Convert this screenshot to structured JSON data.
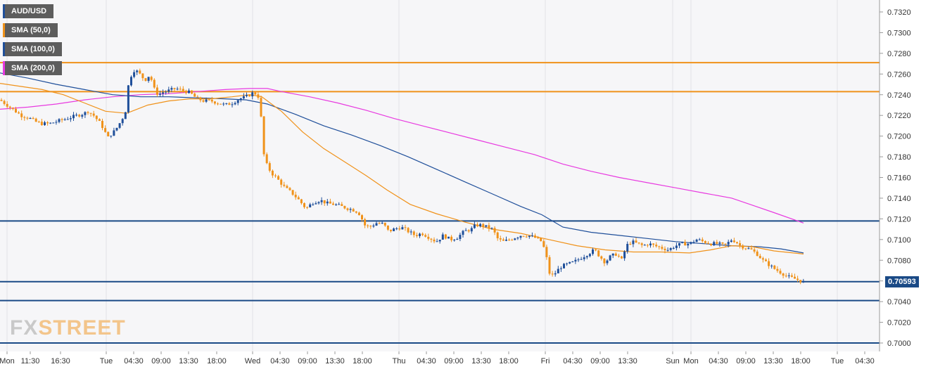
{
  "legend": {
    "symbol": "AUD/USD",
    "sma50": "SMA (50,0)",
    "sma100": "SMA (100,0)",
    "sma200": "SMA (200,0)"
  },
  "logo": {
    "fx": "FX",
    "street": "STREET"
  },
  "current_price": "0.70593",
  "colors": {
    "candle_up": "#1f4f9a",
    "candle_down": "#f0921a",
    "sma50": "#f0921a",
    "sma100": "#1f4f9a",
    "sma200": "#e83ae0",
    "resistance": "#f0921a",
    "support": "#1a4a86",
    "price_tag": "#1a4a86"
  },
  "chart_data": {
    "type": "candlestick",
    "symbol": "AUD/USD",
    "timeframe": "30m",
    "ylim": [
      0.6995,
      0.733
    ],
    "y_ticks": [
      "0.7320",
      "0.7300",
      "0.7280",
      "0.7260",
      "0.7240",
      "0.7220",
      "0.7200",
      "0.7180",
      "0.7160",
      "0.7140",
      "0.7120",
      "0.7100",
      "0.7080",
      "0.7060",
      "0.7040",
      "0.7020",
      "0.7000"
    ],
    "x_ticks": [
      "Mon",
      "11:30",
      "16:30",
      "Tue",
      "04:30",
      "09:00",
      "13:30",
      "18:00",
      "Wed",
      "04:30",
      "09:00",
      "13:30",
      "18:00",
      "Thu",
      "04:30",
      "09:00",
      "13:30",
      "18:00",
      "Fri",
      "04:30",
      "09:00",
      "13:30",
      "Sun",
      "Mon",
      "04:30",
      "09:00",
      "13:30",
      "18:00",
      "Tue",
      "04:30"
    ],
    "horizontal_levels": [
      {
        "value": 0.7271,
        "kind": "resistance"
      },
      {
        "value": 0.7243,
        "kind": "resistance"
      },
      {
        "value": 0.7118,
        "kind": "support"
      },
      {
        "value": 0.70593,
        "kind": "support"
      },
      {
        "value": 0.7041,
        "kind": "support"
      },
      {
        "value": 0.7,
        "kind": "support"
      }
    ],
    "close_path": [
      [
        0,
        0.7235
      ],
      [
        10,
        0.723
      ],
      [
        20,
        0.7225
      ],
      [
        30,
        0.722
      ],
      [
        40,
        0.7218
      ],
      [
        50,
        0.7214
      ],
      [
        60,
        0.7212
      ],
      [
        70,
        0.7212
      ],
      [
        80,
        0.7214
      ],
      [
        90,
        0.7216
      ],
      [
        100,
        0.7218
      ],
      [
        110,
        0.722
      ],
      [
        120,
        0.7222
      ],
      [
        125,
        0.7224
      ],
      [
        133,
        0.722
      ],
      [
        138,
        0.7216
      ],
      [
        143,
        0.7212
      ],
      [
        148,
        0.7206
      ],
      [
        153,
        0.7198
      ],
      [
        158,
        0.7202
      ],
      [
        163,
        0.7205
      ],
      [
        168,
        0.721
      ],
      [
        173,
        0.7216
      ],
      [
        178,
        0.7222
      ],
      [
        181,
        0.7245
      ],
      [
        186,
        0.7258
      ],
      [
        191,
        0.7264
      ],
      [
        196,
        0.7262
      ],
      [
        201,
        0.7258
      ],
      [
        206,
        0.7254
      ],
      [
        211,
        0.7258
      ],
      [
        215,
        0.7255
      ],
      [
        220,
        0.7244
      ],
      [
        225,
        0.724
      ],
      [
        230,
        0.7242
      ],
      [
        240,
        0.7244
      ],
      [
        250,
        0.7246
      ],
      [
        260,
        0.7244
      ],
      [
        270,
        0.7242
      ],
      [
        280,
        0.7236
      ],
      [
        290,
        0.7234
      ],
      [
        300,
        0.7234
      ],
      [
        310,
        0.7232
      ],
      [
        320,
        0.723
      ],
      [
        330,
        0.7232
      ],
      [
        340,
        0.7236
      ],
      [
        350,
        0.7238
      ],
      [
        360,
        0.7242
      ],
      [
        366,
        0.724
      ],
      [
        370,
        0.7232
      ],
      [
        373,
        0.719
      ],
      [
        377,
        0.7175
      ],
      [
        385,
        0.7165
      ],
      [
        395,
        0.7158
      ],
      [
        405,
        0.715
      ],
      [
        415,
        0.7145
      ],
      [
        425,
        0.7138
      ],
      [
        435,
        0.713
      ],
      [
        445,
        0.7136
      ],
      [
        455,
        0.7138
      ],
      [
        465,
        0.7135
      ],
      [
        475,
        0.7134
      ],
      [
        485,
        0.7132
      ],
      [
        495,
        0.713
      ],
      [
        505,
        0.7128
      ],
      [
        512,
        0.7124
      ],
      [
        518,
        0.7114
      ],
      [
        525,
        0.7112
      ],
      [
        535,
        0.7116
      ],
      [
        545,
        0.7115
      ],
      [
        552,
        0.7108
      ],
      [
        560,
        0.711
      ],
      [
        570,
        0.7112
      ],
      [
        580,
        0.7108
      ],
      [
        590,
        0.7104
      ],
      [
        600,
        0.7106
      ],
      [
        610,
        0.7102
      ],
      [
        620,
        0.7098
      ],
      [
        630,
        0.7104
      ],
      [
        640,
        0.71
      ],
      [
        650,
        0.7102
      ],
      [
        660,
        0.7108
      ],
      [
        670,
        0.711
      ],
      [
        676,
        0.7114
      ],
      [
        684,
        0.7114
      ],
      [
        692,
        0.7112
      ],
      [
        700,
        0.711
      ],
      [
        708,
        0.71
      ],
      [
        716,
        0.7098
      ],
      [
        724,
        0.71
      ],
      [
        732,
        0.7102
      ],
      [
        740,
        0.7104
      ],
      [
        750,
        0.7104
      ],
      [
        760,
        0.7102
      ],
      [
        770,
        0.7098
      ],
      [
        776,
        0.7086
      ],
      [
        780,
        0.7068
      ],
      [
        786,
        0.7065
      ],
      [
        792,
        0.707
      ],
      [
        798,
        0.7074
      ],
      [
        806,
        0.7076
      ],
      [
        815,
        0.7078
      ],
      [
        825,
        0.7082
      ],
      [
        835,
        0.7086
      ],
      [
        845,
        0.709
      ],
      [
        852,
        0.7084
      ],
      [
        860,
        0.7078
      ],
      [
        868,
        0.7084
      ],
      [
        876,
        0.7086
      ],
      [
        884,
        0.708
      ],
      [
        890,
        0.7094
      ],
      [
        898,
        0.7098
      ],
      [
        906,
        0.7096
      ],
      [
        914,
        0.7094
      ],
      [
        922,
        0.7096
      ],
      [
        930,
        0.7094
      ],
      [
        940,
        0.7092
      ],
      [
        950,
        0.709
      ],
      [
        960,
        0.7094
      ],
      [
        970,
        0.7096
      ],
      [
        980,
        0.7096
      ],
      [
        990,
        0.71
      ],
      [
        1000,
        0.7098
      ],
      [
        1010,
        0.7096
      ],
      [
        1020,
        0.7096
      ],
      [
        1030,
        0.7094
      ],
      [
        1040,
        0.71
      ],
      [
        1046,
        0.7098
      ],
      [
        1052,
        0.7094
      ],
      [
        1060,
        0.7092
      ],
      [
        1068,
        0.709
      ],
      [
        1076,
        0.7086
      ],
      [
        1084,
        0.708
      ],
      [
        1092,
        0.7076
      ],
      [
        1100,
        0.7072
      ],
      [
        1110,
        0.7068
      ],
      [
        1120,
        0.7064
      ],
      [
        1130,
        0.7062
      ],
      [
        1142,
        0.7059
      ]
    ],
    "sma50": [
      [
        0,
        0.7251
      ],
      [
        30,
        0.7248
      ],
      [
        60,
        0.7245
      ],
      [
        90,
        0.724
      ],
      [
        120,
        0.7232
      ],
      [
        150,
        0.7224
      ],
      [
        180,
        0.7222
      ],
      [
        210,
        0.723
      ],
      [
        240,
        0.7234
      ],
      [
        270,
        0.7236
      ],
      [
        300,
        0.7236
      ],
      [
        330,
        0.7238
      ],
      [
        355,
        0.724
      ],
      [
        372,
        0.7238
      ],
      [
        400,
        0.7224
      ],
      [
        430,
        0.7204
      ],
      [
        460,
        0.7188
      ],
      [
        490,
        0.7175
      ],
      [
        520,
        0.7162
      ],
      [
        550,
        0.7148
      ],
      [
        583,
        0.7134
      ],
      [
        620,
        0.7125
      ],
      [
        660,
        0.7117
      ],
      [
        700,
        0.711
      ],
      [
        740,
        0.7106
      ],
      [
        780,
        0.71
      ],
      [
        820,
        0.7094
      ],
      [
        860,
        0.709
      ],
      [
        900,
        0.7088
      ],
      [
        940,
        0.7088
      ],
      [
        980,
        0.7087
      ],
      [
        1010,
        0.709
      ],
      [
        1040,
        0.7094
      ],
      [
        1070,
        0.7093
      ],
      [
        1100,
        0.7089
      ],
      [
        1142,
        0.7086
      ]
    ],
    "sma100": [
      [
        0,
        0.7261
      ],
      [
        40,
        0.7256
      ],
      [
        80,
        0.725
      ],
      [
        120,
        0.7245
      ],
      [
        160,
        0.724
      ],
      [
        200,
        0.7238
      ],
      [
        240,
        0.7238
      ],
      [
        280,
        0.7237
      ],
      [
        320,
        0.7236
      ],
      [
        350,
        0.7235
      ],
      [
        380,
        0.7231
      ],
      [
        420,
        0.7221
      ],
      [
        460,
        0.721
      ],
      [
        500,
        0.7201
      ],
      [
        540,
        0.7191
      ],
      [
        580,
        0.718
      ],
      [
        620,
        0.7168
      ],
      [
        660,
        0.7156
      ],
      [
        700,
        0.7144
      ],
      [
        740,
        0.7132
      ],
      [
        770,
        0.7124
      ],
      [
        800,
        0.7112
      ],
      [
        840,
        0.7107
      ],
      [
        880,
        0.7104
      ],
      [
        920,
        0.7101
      ],
      [
        960,
        0.7098
      ],
      [
        1000,
        0.7096
      ],
      [
        1040,
        0.7094
      ],
      [
        1080,
        0.7093
      ],
      [
        1110,
        0.7091
      ],
      [
        1142,
        0.7087
      ]
    ],
    "sma200": [
      [
        0,
        0.7226
      ],
      [
        40,
        0.7228
      ],
      [
        80,
        0.7231
      ],
      [
        120,
        0.7235
      ],
      [
        160,
        0.7238
      ],
      [
        200,
        0.724
      ],
      [
        240,
        0.7241
      ],
      [
        280,
        0.7243
      ],
      [
        320,
        0.7245
      ],
      [
        355,
        0.7246
      ],
      [
        380,
        0.7246
      ],
      [
        400,
        0.7243
      ],
      [
        440,
        0.7238
      ],
      [
        480,
        0.7232
      ],
      [
        520,
        0.7225
      ],
      [
        560,
        0.7217
      ],
      [
        600,
        0.721
      ],
      [
        640,
        0.7203
      ],
      [
        680,
        0.7196
      ],
      [
        720,
        0.7189
      ],
      [
        760,
        0.7182
      ],
      [
        800,
        0.7173
      ],
      [
        840,
        0.7166
      ],
      [
        880,
        0.716
      ],
      [
        920,
        0.7155
      ],
      [
        960,
        0.715
      ],
      [
        1000,
        0.7145
      ],
      [
        1040,
        0.714
      ],
      [
        1070,
        0.7133
      ],
      [
        1100,
        0.7126
      ],
      [
        1142,
        0.7116
      ]
    ]
  }
}
